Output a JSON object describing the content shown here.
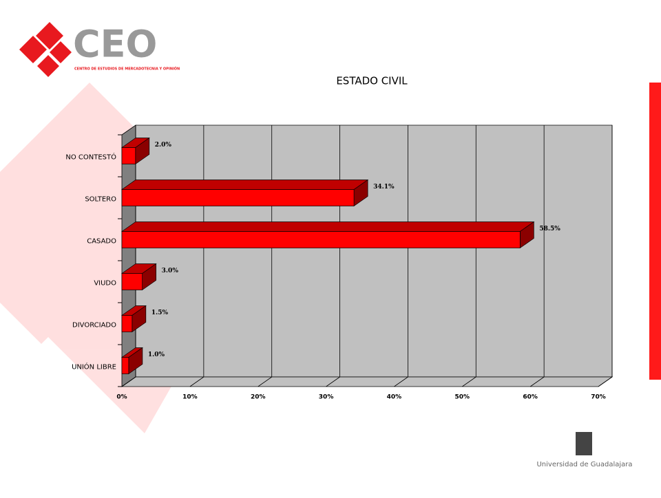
{
  "logo": {
    "name": "CEO",
    "subtitle": "CENTRO DE ESTUDIOS DE MERCADOTECNIA Y OPINIÓN"
  },
  "footer": "Universidad de Guadalajara",
  "chart_data": {
    "type": "bar",
    "orientation": "horizontal",
    "title": "ESTADO CIVIL",
    "categories": [
      "NO CONTESTÓ",
      "SOLTERO",
      "CASADO",
      "VIUDO",
      "DIVORCIADO",
      "UNIÓN LIBRE"
    ],
    "values": [
      2.0,
      34.1,
      58.5,
      3.0,
      1.5,
      1.0
    ],
    "value_labels": [
      "2.0%",
      "34.1%",
      "58.5%",
      "3.0%",
      "1.5%",
      "1.0%"
    ],
    "color": "#ff0000",
    "xlim": [
      0,
      70
    ],
    "xticks": [
      {
        "value": 0,
        "label": "0%"
      },
      {
        "value": 10,
        "label": "10%"
      },
      {
        "value": 20,
        "label": "20%"
      },
      {
        "value": 30,
        "label": "30%"
      },
      {
        "value": 40,
        "label": "40%"
      },
      {
        "value": 50,
        "label": "50%"
      },
      {
        "value": 60,
        "label": "60%"
      },
      {
        "value": 70,
        "label": "70%"
      }
    ],
    "grid": true
  }
}
